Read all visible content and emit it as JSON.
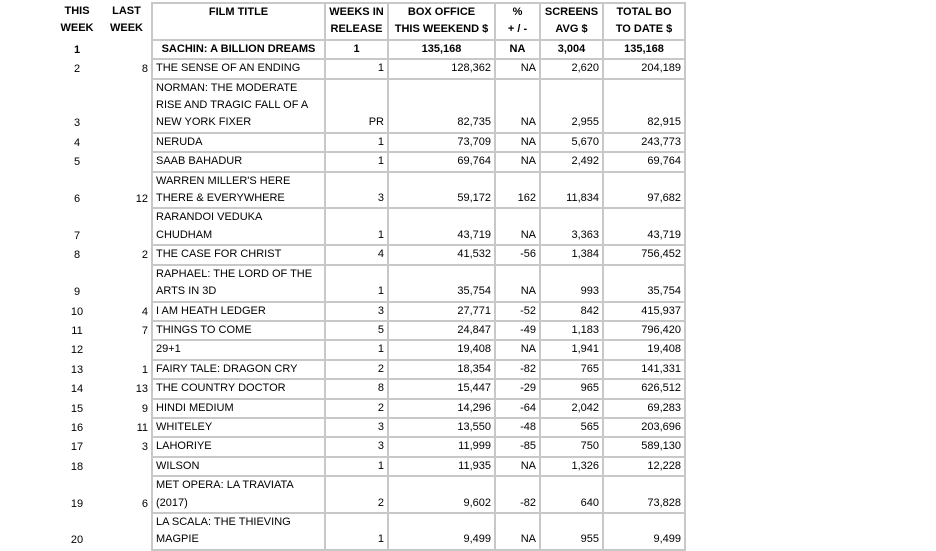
{
  "header": [
    [
      "THIS",
      "WEEK"
    ],
    [
      "LAST",
      "WEEK"
    ],
    [
      "FILM TITLE"
    ],
    [
      "WEEKS IN",
      "RELEASE"
    ],
    [
      "BOX OFFICE",
      "THIS WEEKEND $"
    ],
    [
      "%",
      "+ / -"
    ],
    [
      "SCREENS",
      "AVG $"
    ],
    [
      "TOTAL BO",
      "TO DATE $"
    ]
  ],
  "rows": [
    [
      "1",
      null,
      [
        "SACHIN: A BILLION DREAMS"
      ],
      "1",
      "135,168",
      "NA",
      "3,004",
      "135,168"
    ],
    [
      "2",
      "8",
      [
        "THE SENSE OF AN ENDING"
      ],
      "1",
      "128,362",
      "NA",
      "2,620",
      "204,189"
    ],
    [
      "3",
      null,
      [
        "NORMAN: THE MODERATE",
        "RISE AND TRAGIC FALL OF A",
        "NEW YORK FIXER"
      ],
      "PR",
      "82,735",
      "NA",
      "2,955",
      "82,915"
    ],
    [
      "4",
      null,
      [
        "NERUDA"
      ],
      "1",
      "73,709",
      "NA",
      "5,670",
      "243,773"
    ],
    [
      "5",
      null,
      [
        "SAAB BAHADUR"
      ],
      "1",
      "69,764",
      "NA",
      "2,492",
      "69,764"
    ],
    [
      "6",
      "12",
      [
        "WARREN MILLER'S HERE",
        "THERE & EVERYWHERE"
      ],
      "3",
      "59,172",
      "162",
      "11,834",
      "97,682"
    ],
    [
      "7",
      null,
      [
        "RARANDOI VEDUKA",
        "CHUDHAM"
      ],
      "1",
      "43,719",
      "NA",
      "3,363",
      "43,719"
    ],
    [
      "8",
      "2",
      [
        "THE CASE FOR CHRIST"
      ],
      "4",
      "41,532",
      "-56",
      "1,384",
      "756,452"
    ],
    [
      "9",
      null,
      [
        "RAPHAEL: THE LORD OF THE",
        "ARTS IN 3D"
      ],
      "1",
      "35,754",
      "NA",
      "993",
      "35,754"
    ],
    [
      "10",
      "4",
      [
        "I AM HEATH LEDGER"
      ],
      "3",
      "27,771",
      "-52",
      "842",
      "415,937"
    ],
    [
      "11",
      "7",
      [
        "THINGS TO COME"
      ],
      "5",
      "24,847",
      "-49",
      "1,183",
      "796,420"
    ],
    [
      "12",
      null,
      [
        "29+1"
      ],
      "1",
      "19,408",
      "NA",
      "1,941",
      "19,408"
    ],
    [
      "13",
      "1",
      [
        "FAIRY TALE: DRAGON CRY"
      ],
      "2",
      "18,354",
      "-82",
      "765",
      "141,331"
    ],
    [
      "14",
      "13",
      [
        "THE COUNTRY DOCTOR"
      ],
      "8",
      "15,447",
      "-29",
      "965",
      "626,512"
    ],
    [
      "15",
      "9",
      [
        "HINDI MEDIUM"
      ],
      "2",
      "14,296",
      "-64",
      "2,042",
      "69,283"
    ],
    [
      "16",
      "11",
      [
        "WHITELEY"
      ],
      "3",
      "13,550",
      "-48",
      "565",
      "203,696"
    ],
    [
      "17",
      "3",
      [
        "LAHORIYE"
      ],
      "3",
      "11,999",
      "-85",
      "750",
      "589,130"
    ],
    [
      "18",
      null,
      [
        "WILSON"
      ],
      "1",
      "11,935",
      "NA",
      "1,326",
      "12,228"
    ],
    [
      "19",
      "6",
      [
        "MET OPERA: LA TRAVIATA",
        "(2017)"
      ],
      "2",
      "9,602",
      "-82",
      "640",
      "73,828"
    ],
    [
      "20",
      null,
      [
        "LA SCALA: THE THIEVING",
        "MAGPIE"
      ],
      "1",
      "9,499",
      "NA",
      "955",
      "9,499"
    ]
  ]
}
